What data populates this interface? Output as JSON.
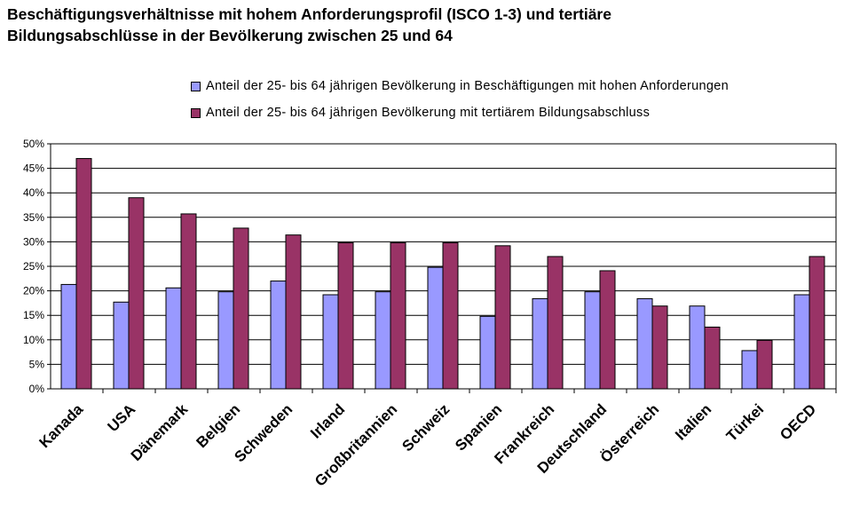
{
  "chart_data": {
    "type": "bar",
    "title_line1": "Beschäftigungsverhältnisse mit hohem Anforderungsprofil (ISCO 1-3) und tertiäre",
    "title_line2": "Bildungsabschlüsse in der Bevölkerung zwischen 25 und 64",
    "categories": [
      "Kanada",
      "USA",
      "Dänemark",
      "Belgien",
      "Schweden",
      "Irland",
      "Großbritannien",
      "Schweiz",
      "Spanien",
      "Frankreich",
      "Deutschland",
      "Österreich",
      "Italien",
      "Türkei",
      "OECD"
    ],
    "series": [
      {
        "name": "Anteil der 25- bis 64 jährigen Bevölkerung in Beschäftigungen mit hohen Anforderungen",
        "color": "#9999ff",
        "values": [
          21.3,
          17.7,
          20.6,
          19.8,
          22.0,
          19.2,
          19.8,
          24.8,
          14.8,
          18.4,
          19.8,
          18.4,
          16.9,
          7.8,
          19.2
        ]
      },
      {
        "name": "Anteil der 25- bis 64 jährigen Bevölkerung mit tertiärem Bildungsabschluss",
        "color": "#993366",
        "values": [
          47.0,
          39.0,
          35.7,
          32.8,
          31.4,
          29.8,
          29.8,
          29.8,
          29.2,
          27.0,
          24.1,
          16.9,
          12.6,
          9.9,
          27.0
        ]
      }
    ],
    "y_ticks": [
      "0%",
      "5%",
      "10%",
      "15%",
      "20%",
      "25%",
      "30%",
      "35%",
      "40%",
      "45%",
      "50%"
    ],
    "ylim": [
      0,
      50
    ],
    "grid": true,
    "legend_position": "top"
  }
}
